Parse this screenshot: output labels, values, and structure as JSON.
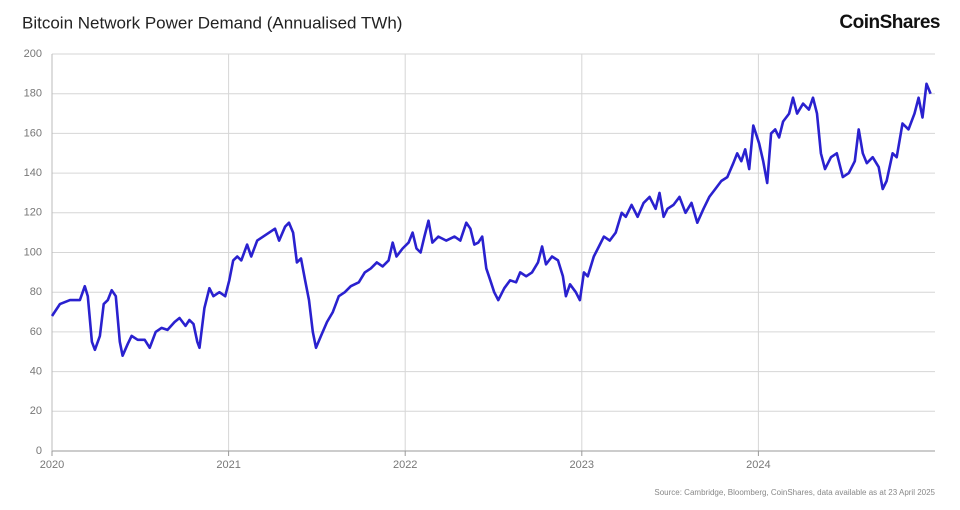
{
  "chart_data": {
    "type": "line",
    "title": "Bitcoin Network Power Demand (Annualised TWh)",
    "brand": "CoinShares",
    "source": "Source: Cambridge, Bloomberg, CoinShares, data available as at 23 April 2025",
    "xlim": [
      2020,
      2025
    ],
    "xticks": [
      2020,
      2021,
      2022,
      2023,
      2024
    ],
    "ylim": [
      0,
      200
    ],
    "yticks": [
      0,
      20,
      40,
      60,
      80,
      100,
      120,
      140,
      160,
      180,
      200
    ],
    "grid": true,
    "x": [
      2020.0,
      2020.045,
      2020.102,
      2020.158,
      2020.186,
      2020.203,
      2020.226,
      2020.243,
      2020.271,
      2020.293,
      2020.316,
      2020.338,
      2020.361,
      2020.384,
      2020.4,
      2020.429,
      2020.451,
      2020.485,
      2020.525,
      2020.553,
      2020.587,
      2020.62,
      2020.654,
      2020.694,
      2020.722,
      2020.756,
      2020.778,
      2020.801,
      2020.823,
      2020.835,
      2020.863,
      2020.891,
      2020.914,
      2020.948,
      2020.981,
      2021.004,
      2021.026,
      2021.049,
      2021.072,
      2021.105,
      2021.128,
      2021.162,
      2021.196,
      2021.23,
      2021.263,
      2021.286,
      2021.32,
      2021.342,
      2021.365,
      2021.387,
      2021.41,
      2021.433,
      2021.455,
      2021.477,
      2021.495,
      2021.523,
      2021.557,
      2021.59,
      2021.624,
      2021.658,
      2021.692,
      2021.737,
      2021.771,
      2021.805,
      2021.839,
      2021.872,
      2021.906,
      2021.929,
      2021.951,
      2021.985,
      2022.019,
      2022.042,
      2022.064,
      2022.087,
      2022.109,
      2022.132,
      2022.154,
      2022.188,
      2022.233,
      2022.279,
      2022.312,
      2022.346,
      2022.369,
      2022.391,
      2022.414,
      2022.436,
      2022.459,
      2022.482,
      2022.504,
      2022.527,
      2022.561,
      2022.594,
      2022.628,
      2022.651,
      2022.685,
      2022.718,
      2022.752,
      2022.775,
      2022.797,
      2022.831,
      2022.865,
      2022.893,
      2022.91,
      2022.933,
      2022.966,
      2022.989,
      2023.012,
      2023.034,
      2023.068,
      2023.091,
      2023.125,
      2023.158,
      2023.192,
      2023.226,
      2023.249,
      2023.282,
      2023.316,
      2023.35,
      2023.384,
      2023.418,
      2023.44,
      2023.463,
      2023.485,
      2023.519,
      2023.553,
      2023.587,
      2023.621,
      2023.654,
      2023.689,
      2023.722,
      2023.756,
      2023.79,
      2023.824,
      2023.858,
      2023.88,
      2023.903,
      2023.925,
      2023.948,
      2023.971,
      2024.004,
      2024.027,
      2024.05,
      2024.072,
      2024.095,
      2024.117,
      2024.14,
      2024.174,
      2024.196,
      2024.219,
      2024.253,
      2024.286,
      2024.309,
      2024.332,
      2024.354,
      2024.377,
      2024.411,
      2024.444,
      2024.478,
      2024.512,
      2024.546,
      2024.568,
      2024.591,
      2024.614,
      2024.647,
      2024.681,
      2024.704,
      2024.726,
      2024.76,
      2024.783,
      2024.816,
      2024.85,
      2024.884,
      2024.907,
      2024.929,
      2024.952,
      2024.975
    ],
    "series": [
      {
        "color": "#2a21cf",
        "values": [
          68,
          74,
          76,
          76,
          83,
          78,
          55,
          51,
          58,
          74,
          76,
          81,
          78,
          55,
          48,
          54,
          58,
          56,
          56,
          52,
          60,
          62,
          61,
          65,
          67,
          63,
          66,
          64,
          55,
          52,
          72,
          82,
          78,
          80,
          78,
          86,
          96,
          98,
          96,
          104,
          98,
          106,
          108,
          110,
          112,
          106,
          113,
          115,
          110,
          95,
          97,
          86,
          76,
          60,
          52,
          58,
          65,
          70,
          78,
          80,
          83,
          85,
          90,
          92,
          95,
          93,
          96,
          105,
          98,
          102,
          105,
          110,
          102,
          100,
          108,
          116,
          105,
          108,
          106,
          108,
          106,
          115,
          112,
          104,
          105,
          108,
          92,
          86,
          80,
          76,
          82,
          86,
          85,
          90,
          88,
          90,
          95,
          103,
          94,
          98,
          96,
          88,
          78,
          84,
          80,
          76,
          90,
          88,
          98,
          102,
          108,
          106,
          110,
          120,
          118,
          124,
          118,
          125,
          128,
          122,
          130,
          118,
          122,
          124,
          128,
          120,
          125,
          115,
          122,
          128,
          132,
          136,
          138,
          145,
          150,
          146,
          152,
          142,
          164,
          155,
          146,
          135,
          160,
          162,
          158,
          166,
          170,
          178,
          170,
          175,
          172,
          178,
          170,
          150,
          142,
          148,
          150,
          138,
          140,
          146,
          162,
          150,
          145,
          148,
          143,
          132,
          136,
          150,
          148,
          165,
          162,
          170,
          178,
          168,
          185,
          180
        ]
      }
    ]
  }
}
